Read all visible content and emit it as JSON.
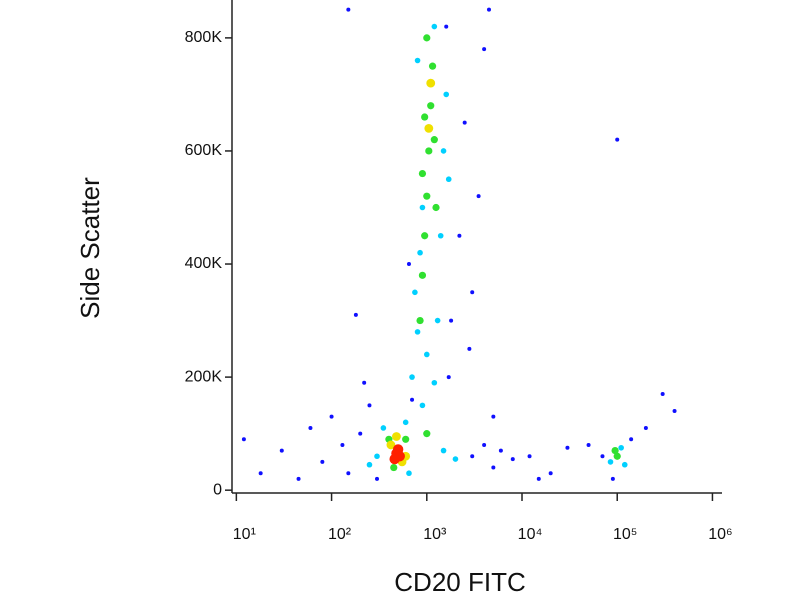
{
  "chart_data": {
    "type": "scatter",
    "x_label": "CD20 FITC",
    "y_label": "Side Scatter",
    "xscale": "log",
    "xlim": [
      9,
      1260000
    ],
    "xticks": [
      {
        "value": 10,
        "label": "10¹"
      },
      {
        "value": 100,
        "label": "10²"
      },
      {
        "value": 1000,
        "label": "10³"
      },
      {
        "value": 10000,
        "label": "10⁴"
      },
      {
        "value": 100000,
        "label": "10⁵"
      },
      {
        "value": 1000000,
        "label": "10⁶"
      }
    ],
    "ylim": [
      -5000,
      867000
    ],
    "yticks": [
      0,
      {
        "value": 200000,
        "label": "200K"
      },
      {
        "value": 400000,
        "label": "400K"
      },
      {
        "value": 600000,
        "label": "600K"
      },
      {
        "value": 800000,
        "label": "800K"
      }
    ],
    "series": [
      {
        "color": "#1010ff",
        "x": [
          12,
          18,
          30,
          45,
          60,
          80,
          100,
          130,
          150,
          200,
          250,
          300,
          180,
          220,
          3000,
          4000,
          5000,
          6000,
          8000,
          12000,
          20000,
          1800,
          2200,
          2500,
          3000,
          3500,
          4000,
          4500,
          2800,
          1600,
          70000,
          140000,
          200000,
          300000,
          400000,
          90000,
          50000,
          100000,
          150,
          700,
          650,
          1700,
          5000,
          15000,
          30000
        ],
        "values": [
          90000,
          30000,
          70000,
          20000,
          110000,
          50000,
          130000,
          80000,
          30000,
          100000,
          150000,
          20000,
          310000,
          190000,
          60000,
          80000,
          40000,
          70000,
          55000,
          60000,
          30000,
          300000,
          450000,
          650000,
          350000,
          520000,
          780000,
          850000,
          250000,
          820000,
          60000,
          90000,
          110000,
          170000,
          140000,
          20000,
          80000,
          620000,
          850000,
          160000,
          400000,
          200000,
          130000,
          20000,
          75000
        ]
      },
      {
        "color": "#00d0ff",
        "x": [
          300,
          350,
          600,
          700,
          800,
          750,
          850,
          900,
          1300,
          1400,
          1500,
          1600,
          1200,
          800,
          1700,
          1000,
          900,
          1500,
          2000,
          85000,
          110000,
          120000,
          250,
          650,
          1200
        ],
        "values": [
          60000,
          110000,
          120000,
          200000,
          280000,
          350000,
          420000,
          500000,
          300000,
          450000,
          600000,
          700000,
          820000,
          760000,
          550000,
          240000,
          150000,
          70000,
          55000,
          50000,
          75000,
          45000,
          45000,
          30000,
          190000
        ]
      },
      {
        "color": "#30e030",
        "x": [
          850,
          900,
          950,
          1000,
          1050,
          1100,
          1150,
          1000,
          1200,
          900,
          400,
          600,
          450,
          100000,
          95000,
          1000,
          1250,
          950
        ],
        "values": [
          300000,
          380000,
          450000,
          520000,
          600000,
          680000,
          750000,
          800000,
          620000,
          560000,
          90000,
          90000,
          40000,
          60000,
          70000,
          100000,
          500000,
          660000
        ]
      },
      {
        "color": "#f0e000",
        "x": [
          420,
          550,
          1050,
          1100,
          480,
          600
        ],
        "values": [
          80000,
          50000,
          640000,
          720000,
          95000,
          60000
        ]
      },
      {
        "color": "#ff2000",
        "x": [
          480,
          520,
          460,
          500
        ],
        "values": [
          65000,
          60000,
          55000,
          72000
        ]
      }
    ]
  }
}
